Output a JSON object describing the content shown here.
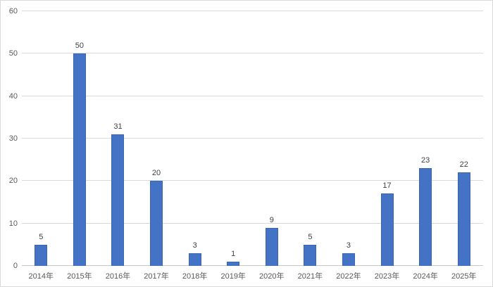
{
  "chart_data": {
    "type": "bar",
    "title": "",
    "xlabel": "",
    "ylabel": "",
    "categories": [
      "2014年",
      "2015年",
      "2016年",
      "2017年",
      "2018年",
      "2019年",
      "2020年",
      "2021年",
      "2022年",
      "2023年",
      "2024年",
      "2025年"
    ],
    "values": [
      5,
      50,
      31,
      20,
      3,
      1,
      9,
      5,
      3,
      17,
      23,
      22
    ],
    "data_labels": [
      "5",
      "50",
      "31",
      "20",
      "3",
      "1",
      "9",
      "5",
      "3",
      "17",
      "23",
      "22"
    ],
    "ylim": [
      0,
      60
    ],
    "yticks": [
      0,
      10,
      20,
      30,
      40,
      50,
      60
    ],
    "grid": true,
    "legend": "none",
    "colors": {
      "bar_fill": "#4472C4",
      "bar_border": "#3A65B3",
      "gridline": "#D9D9D9",
      "axis_line": "#C9C9C9",
      "tick_label": "#595959",
      "data_label": "#404040",
      "background": "#FFFFFF",
      "frame_border": "#D9D9D9"
    }
  }
}
